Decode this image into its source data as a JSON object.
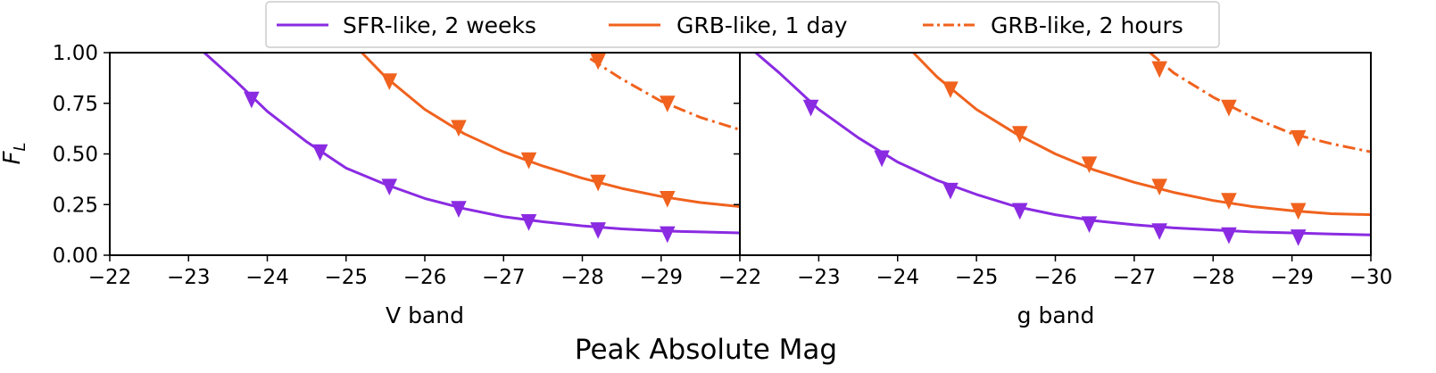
{
  "figure": {
    "shared_xlabel": "Peak Absolute Mag",
    "shared_ylabel": "F_L",
    "legend_placement": "top-center"
  },
  "legend": {
    "entries": [
      {
        "label": "SFR-like, 2 weeks",
        "color": "#8a2be2",
        "linestyle": "solid"
      },
      {
        "label": "GRB-like, 1 day",
        "color": "#f0621e",
        "linestyle": "solid"
      },
      {
        "label": "GRB-like, 2 hours",
        "color": "#f0621e",
        "linestyle": "dashdot"
      }
    ]
  },
  "colors": {
    "sfr": "#8a2be2",
    "grb": "#f0621e"
  },
  "chart_data": [
    {
      "type": "line",
      "panel_label": "V band",
      "xlim": [
        -22,
        -30
      ],
      "ylim": [
        0,
        1
      ],
      "xticks": [
        "−22",
        "−23",
        "−24",
        "−25",
        "−26",
        "−27",
        "−28",
        "−29"
      ],
      "yticks": [
        "0.00",
        "0.25",
        "0.50",
        "0.75",
        "1.00"
      ],
      "series": [
        {
          "name": "SFR-like, 2 weeks",
          "style": "solid",
          "color": "#8a2be2",
          "curve_x": [
            -23.2,
            -23.6,
            -24.0,
            -24.5,
            -25.0,
            -25.5,
            -26.0,
            -26.5,
            -27.0,
            -27.5,
            -28.0,
            -28.5,
            -29.0,
            -29.5,
            -30.0
          ],
          "curve_y": [
            1.0,
            0.86,
            0.71,
            0.56,
            0.43,
            0.35,
            0.28,
            0.23,
            0.19,
            0.165,
            0.145,
            0.13,
            0.12,
            0.115,
            0.11
          ],
          "markers_x": [
            -23.8,
            -24.67,
            -25.55,
            -26.43,
            -27.32,
            -28.2,
            -29.08
          ],
          "markers_y": [
            0.77,
            0.51,
            0.34,
            0.23,
            0.165,
            0.125,
            0.105
          ]
        },
        {
          "name": "GRB-like, 1 day",
          "style": "solid",
          "color": "#f0621e",
          "curve_x": [
            -25.2,
            -25.5,
            -26.0,
            -26.5,
            -27.0,
            -27.5,
            -28.0,
            -28.5,
            -29.0,
            -29.5,
            -30.0
          ],
          "curve_y": [
            1.0,
            0.88,
            0.72,
            0.6,
            0.51,
            0.44,
            0.38,
            0.33,
            0.29,
            0.26,
            0.24
          ],
          "markers_x": [
            -25.55,
            -26.43,
            -27.32,
            -28.2,
            -29.08
          ],
          "markers_y": [
            0.86,
            0.63,
            0.47,
            0.36,
            0.28
          ]
        },
        {
          "name": "GRB-like, 2 hours",
          "style": "dashdot",
          "color": "#f0621e",
          "curve_x": [
            -28.1,
            -28.5,
            -29.0,
            -29.5,
            -30.0
          ],
          "curve_y": [
            0.97,
            0.87,
            0.76,
            0.68,
            0.62
          ],
          "markers_x": [
            -28.2,
            -29.08
          ],
          "markers_y": [
            0.96,
            0.75
          ]
        }
      ]
    },
    {
      "type": "line",
      "panel_label": "g band",
      "xlim": [
        -22,
        -30
      ],
      "ylim": [
        0,
        1
      ],
      "xticks": [
        "−22",
        "−23",
        "−24",
        "−25",
        "−26",
        "−27",
        "−28",
        "−29",
        "−30"
      ],
      "yticks": [],
      "series": [
        {
          "name": "SFR-like, 2 weeks",
          "style": "solid",
          "color": "#8a2be2",
          "curve_x": [
            -22.2,
            -22.5,
            -23.0,
            -23.5,
            -24.0,
            -24.5,
            -25.0,
            -25.5,
            -26.0,
            -26.5,
            -27.0,
            -27.5,
            -28.0,
            -28.5,
            -29.0,
            -29.5,
            -30.0
          ],
          "curve_y": [
            1.0,
            0.9,
            0.72,
            0.58,
            0.46,
            0.37,
            0.3,
            0.24,
            0.2,
            0.17,
            0.15,
            0.135,
            0.125,
            0.115,
            0.11,
            0.105,
            0.1
          ],
          "markers_x": [
            -22.9,
            -23.8,
            -24.67,
            -25.55,
            -26.43,
            -27.32,
            -28.2,
            -29.08
          ],
          "markers_y": [
            0.73,
            0.48,
            0.32,
            0.22,
            0.155,
            0.12,
            0.1,
            0.09
          ]
        },
        {
          "name": "GRB-like, 1 day",
          "style": "solid",
          "color": "#f0621e",
          "curve_x": [
            -24.2,
            -24.5,
            -25.0,
            -25.5,
            -26.0,
            -26.5,
            -27.0,
            -27.5,
            -28.0,
            -28.5,
            -29.0,
            -29.5,
            -30.0
          ],
          "curve_y": [
            1.0,
            0.88,
            0.72,
            0.6,
            0.5,
            0.42,
            0.36,
            0.31,
            0.27,
            0.24,
            0.22,
            0.205,
            0.2
          ],
          "markers_x": [
            -24.67,
            -25.55,
            -26.43,
            -27.32,
            -28.2,
            -29.08
          ],
          "markers_y": [
            0.82,
            0.6,
            0.45,
            0.34,
            0.27,
            0.22
          ]
        },
        {
          "name": "GRB-like, 2 hours",
          "style": "dashdot",
          "color": "#f0621e",
          "curve_x": [
            -27.2,
            -27.5,
            -28.0,
            -28.5,
            -29.0,
            -29.5,
            -30.0
          ],
          "curve_y": [
            1.0,
            0.9,
            0.78,
            0.68,
            0.6,
            0.55,
            0.51
          ],
          "markers_x": [
            -27.32,
            -28.2,
            -29.08
          ],
          "markers_y": [
            0.92,
            0.73,
            0.58
          ]
        }
      ]
    }
  ]
}
